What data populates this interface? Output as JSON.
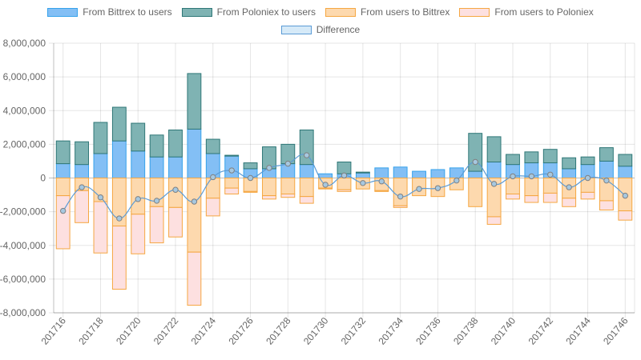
{
  "chart_data": {
    "type": "bar",
    "stacked": true,
    "categories": [
      "201716",
      "201717",
      "201718",
      "201719",
      "201720",
      "201721",
      "201722",
      "201723",
      "201724",
      "201725",
      "201726",
      "201727",
      "201728",
      "201729",
      "201730",
      "201731",
      "201732",
      "201733",
      "201734",
      "201735",
      "201736",
      "201737",
      "201738",
      "201739",
      "201740",
      "201741",
      "201742",
      "201743",
      "201744",
      "201745",
      "201746"
    ],
    "series": [
      {
        "name": "From Bittrex to users",
        "type": "bar",
        "color": "#36a2eb",
        "fill": "#83bff5",
        "values": [
          850000,
          800000,
          1450000,
          2200000,
          1600000,
          1250000,
          1250000,
          2900000,
          1450000,
          1300000,
          550000,
          550000,
          850000,
          800000,
          250000,
          250000,
          300000,
          600000,
          650000,
          400000,
          500000,
          600000,
          400000,
          950000,
          800000,
          900000,
          900000,
          550000,
          800000,
          1000000,
          700000
        ]
      },
      {
        "name": "From Poloniex to users",
        "type": "bar",
        "color": "#2f7777",
        "fill": "#7fb3b3",
        "values": [
          1350000,
          1350000,
          1850000,
          2000000,
          1650000,
          1300000,
          1600000,
          3300000,
          850000,
          50000,
          350000,
          1300000,
          1150000,
          2050000,
          0,
          700000,
          50000,
          0,
          0,
          0,
          0,
          0,
          2250000,
          1500000,
          600000,
          650000,
          800000,
          650000,
          450000,
          800000,
          700000
        ]
      },
      {
        "name": "From users to Bittrex",
        "type": "bar",
        "color": "#f5a742",
        "fill": "#fdd9ae",
        "values": [
          -1050000,
          -750000,
          -1400000,
          -2850000,
          -2150000,
          -1700000,
          -1750000,
          -4400000,
          -1200000,
          -600000,
          -800000,
          -1050000,
          -950000,
          -1100000,
          -600000,
          -700000,
          -650000,
          -750000,
          -1650000,
          -1050000,
          -1100000,
          -700000,
          -1700000,
          -2300000,
          -950000,
          -1050000,
          -900000,
          -1200000,
          -850000,
          -1350000,
          -1950000
        ]
      },
      {
        "name": "From users to Poloniex",
        "type": "bar",
        "color": "#f5a742",
        "fill": "#fde0e0",
        "values": [
          -3150000,
          -1900000,
          -3050000,
          -3750000,
          -2350000,
          -2150000,
          -1750000,
          -3150000,
          -1050000,
          -350000,
          -50000,
          -200000,
          -200000,
          -400000,
          -50000,
          -100000,
          0,
          -50000,
          -100000,
          0,
          0,
          0,
          0,
          -450000,
          -300000,
          -400000,
          -550000,
          -500000,
          -400000,
          -550000,
          -550000
        ]
      },
      {
        "name": "Difference",
        "type": "line",
        "color": "#5b9bd5",
        "fill": "#d6eaf8",
        "values": [
          -1950000,
          -550000,
          -1150000,
          -2400000,
          -1250000,
          -1350000,
          -700000,
          -1400000,
          50000,
          450000,
          0,
          600000,
          850000,
          1350000,
          -400000,
          150000,
          -300000,
          -200000,
          -1100000,
          -650000,
          -600000,
          -150000,
          950000,
          -350000,
          100000,
          100000,
          200000,
          -550000,
          0,
          -150000,
          -1050000
        ]
      }
    ],
    "x_tick_labels": [
      "201716",
      "201718",
      "201720",
      "201722",
      "201724",
      "201726",
      "201728",
      "201730",
      "201732",
      "201734",
      "201736",
      "201738",
      "201740",
      "201742",
      "201744",
      "201746"
    ],
    "y_tick_labels": [
      "8,000,000",
      "6,000,000",
      "4,000,000",
      "2,000,000",
      "0",
      "-2,000,000",
      "-4,000,000",
      "-6,000,000",
      "-8,000,000"
    ],
    "ylim": [
      -8000000,
      8000000
    ],
    "ystep": 2000000,
    "grid": true,
    "legend_position": "top"
  }
}
